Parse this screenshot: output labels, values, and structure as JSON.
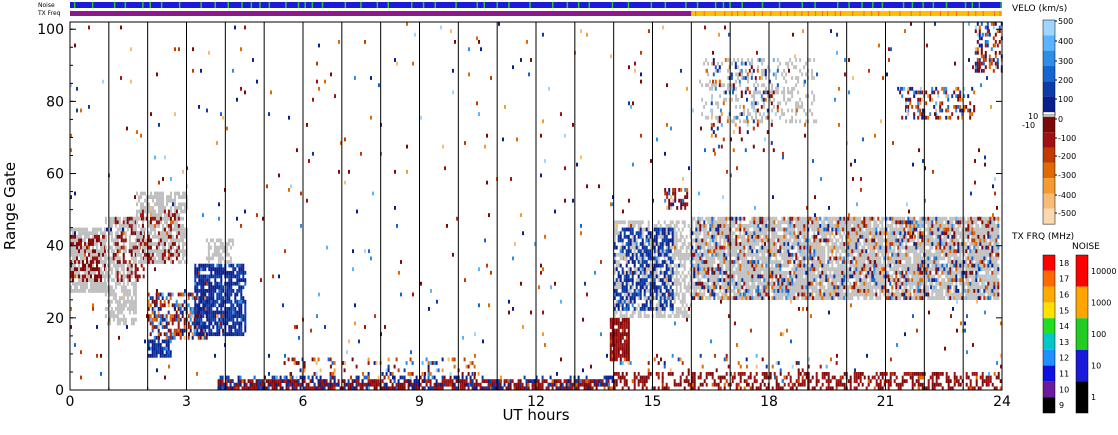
{
  "chart_data": {
    "type": "heatmap",
    "xlabel": "UT hours",
    "ylabel": "Range Gate",
    "xlim": [
      0,
      24
    ],
    "ylim": [
      0,
      102
    ],
    "xticks": [
      "0",
      "3",
      "6",
      "9",
      "12",
      "15",
      "18",
      "21",
      "24"
    ],
    "yticks": [
      "0",
      "20",
      "40",
      "60",
      "80",
      "100"
    ],
    "scan_boundaries_hours": [
      1,
      2,
      3,
      4,
      5,
      6,
      7,
      8,
      9,
      10,
      11,
      12,
      13,
      14,
      15,
      16,
      17,
      18,
      19,
      20,
      21,
      22,
      23
    ],
    "top_strips": {
      "noise_label": "Noise",
      "txfreq_label": "TX Freq",
      "noise_base_color": "#1a1ad8",
      "noise_tick_color": "#22cc22",
      "txfreq_segments": [
        {
          "from": 0,
          "to": 16,
          "color": "#8a1a8a"
        },
        {
          "from": 16,
          "to": 24,
          "color": "#ffc000"
        }
      ]
    },
    "velocity_scale": {
      "title": "VELO (km/s)",
      "ticks": [
        "500",
        "400",
        "300",
        "200",
        "100",
        "0",
        "-100",
        "-200",
        "-300",
        "-400",
        "-500"
      ],
      "ground_labels": [
        "10",
        "-10"
      ],
      "colors": [
        "#9ed6ff",
        "#5ab4ff",
        "#2e8ee6",
        "#1565d2",
        "#0c3ca8",
        "#0b1f8c",
        "#7a0a0a",
        "#a01010",
        "#c23a00",
        "#e06a00",
        "#f39a30",
        "#f7bd77",
        "#fbd9b0"
      ]
    },
    "txfreq_scale": {
      "title": "TX FRQ (MHz)",
      "ticks": [
        "18",
        "17",
        "16",
        "15",
        "14",
        "13",
        "12",
        "11",
        "10",
        "9"
      ],
      "colors": [
        "#ff0000",
        "#ff6a00",
        "#ffaa00",
        "#ffe000",
        "#22dd22",
        "#00c8c8",
        "#1e90ff",
        "#1010e0",
        "#6a1a9a",
        "#000000"
      ]
    },
    "noise_scale": {
      "title": "NOISE",
      "ticks": [
        "10000",
        "1000",
        "100",
        "10",
        "1"
      ],
      "colors": [
        "#ff0000",
        "#ffa500",
        "#22cc22",
        "#1a1ad8",
        "#000000"
      ]
    },
    "echo_regions": [
      {
        "x0": 0.0,
        "x1": 0.9,
        "y0": 27,
        "y1": 45,
        "kind": "ground",
        "density": 0.85
      },
      {
        "x0": 0.0,
        "x1": 0.9,
        "y0": 30,
        "y1": 43,
        "kind": "neg",
        "density": 0.35
      },
      {
        "x0": 0.9,
        "x1": 1.7,
        "y0": 18,
        "y1": 48,
        "kind": "ground",
        "density": 0.6
      },
      {
        "x0": 1.1,
        "x1": 1.9,
        "y0": 30,
        "y1": 48,
        "kind": "neg",
        "density": 0.35
      },
      {
        "x0": 1.7,
        "x1": 3.0,
        "y0": 35,
        "y1": 55,
        "kind": "ground",
        "density": 0.65
      },
      {
        "x0": 1.8,
        "x1": 2.8,
        "y0": 35,
        "y1": 50,
        "kind": "neg",
        "density": 0.25
      },
      {
        "x0": 2.0,
        "x1": 2.6,
        "y0": 9,
        "y1": 14,
        "kind": "pos",
        "density": 0.8
      },
      {
        "x0": 2.0,
        "x1": 3.5,
        "y0": 14,
        "y1": 27,
        "kind": "mixed",
        "density": 0.55
      },
      {
        "x0": 3.2,
        "x1": 4.5,
        "y0": 15,
        "y1": 35,
        "kind": "pos",
        "density": 0.75
      },
      {
        "x0": 3.5,
        "x1": 4.2,
        "y0": 35,
        "y1": 42,
        "kind": "ground",
        "density": 0.6
      },
      {
        "x0": 13.9,
        "x1": 14.4,
        "y0": 8,
        "y1": 20,
        "kind": "neg",
        "density": 0.9
      },
      {
        "x0": 14.0,
        "x1": 16.0,
        "y0": 20,
        "y1": 47,
        "kind": "ground",
        "density": 0.55
      },
      {
        "x0": 14.0,
        "x1": 15.5,
        "y0": 22,
        "y1": 45,
        "kind": "pos",
        "density": 0.5
      },
      {
        "x0": 15.3,
        "x1": 15.9,
        "y0": 50,
        "y1": 56,
        "kind": "mixed",
        "density": 0.45
      },
      {
        "x0": 16.0,
        "x1": 23.9,
        "y0": 25,
        "y1": 48,
        "kind": "ground",
        "density": 0.8
      },
      {
        "x0": 16.0,
        "x1": 23.9,
        "y0": 25,
        "y1": 48,
        "kind": "mixed",
        "density": 0.25
      },
      {
        "x0": 16.2,
        "x1": 19.2,
        "y0": 74,
        "y1": 92,
        "kind": "ground",
        "density": 0.25
      },
      {
        "x0": 16.5,
        "x1": 18.2,
        "y0": 66,
        "y1": 92,
        "kind": "mixed",
        "density": 0.12
      },
      {
        "x0": 21.3,
        "x1": 23.3,
        "y0": 75,
        "y1": 84,
        "kind": "mixed",
        "density": 0.35
      },
      {
        "x0": 23.3,
        "x1": 24.0,
        "y0": 88,
        "y1": 102,
        "kind": "mixed",
        "density": 0.45
      },
      {
        "x0": 3.8,
        "x1": 14.0,
        "y0": 0,
        "y1": 3,
        "kind": "neg",
        "density": 0.7
      },
      {
        "x0": 3.8,
        "x1": 14.0,
        "y0": 0,
        "y1": 4,
        "kind": "pos",
        "density": 0.25
      },
      {
        "x0": 5.5,
        "x1": 10.5,
        "y0": 3,
        "y1": 9,
        "kind": "mixed",
        "density": 0.18
      },
      {
        "x0": 14.0,
        "x1": 24.0,
        "y0": 0,
        "y1": 5,
        "kind": "neg",
        "density": 0.45
      },
      {
        "x0": 14.0,
        "x1": 20.0,
        "y0": 5,
        "y1": 10,
        "kind": "mixed",
        "density": 0.08
      },
      {
        "x0": 0.0,
        "x1": 24.0,
        "y0": 0,
        "y1": 102,
        "kind": "mixed",
        "density": 0.012
      }
    ]
  }
}
